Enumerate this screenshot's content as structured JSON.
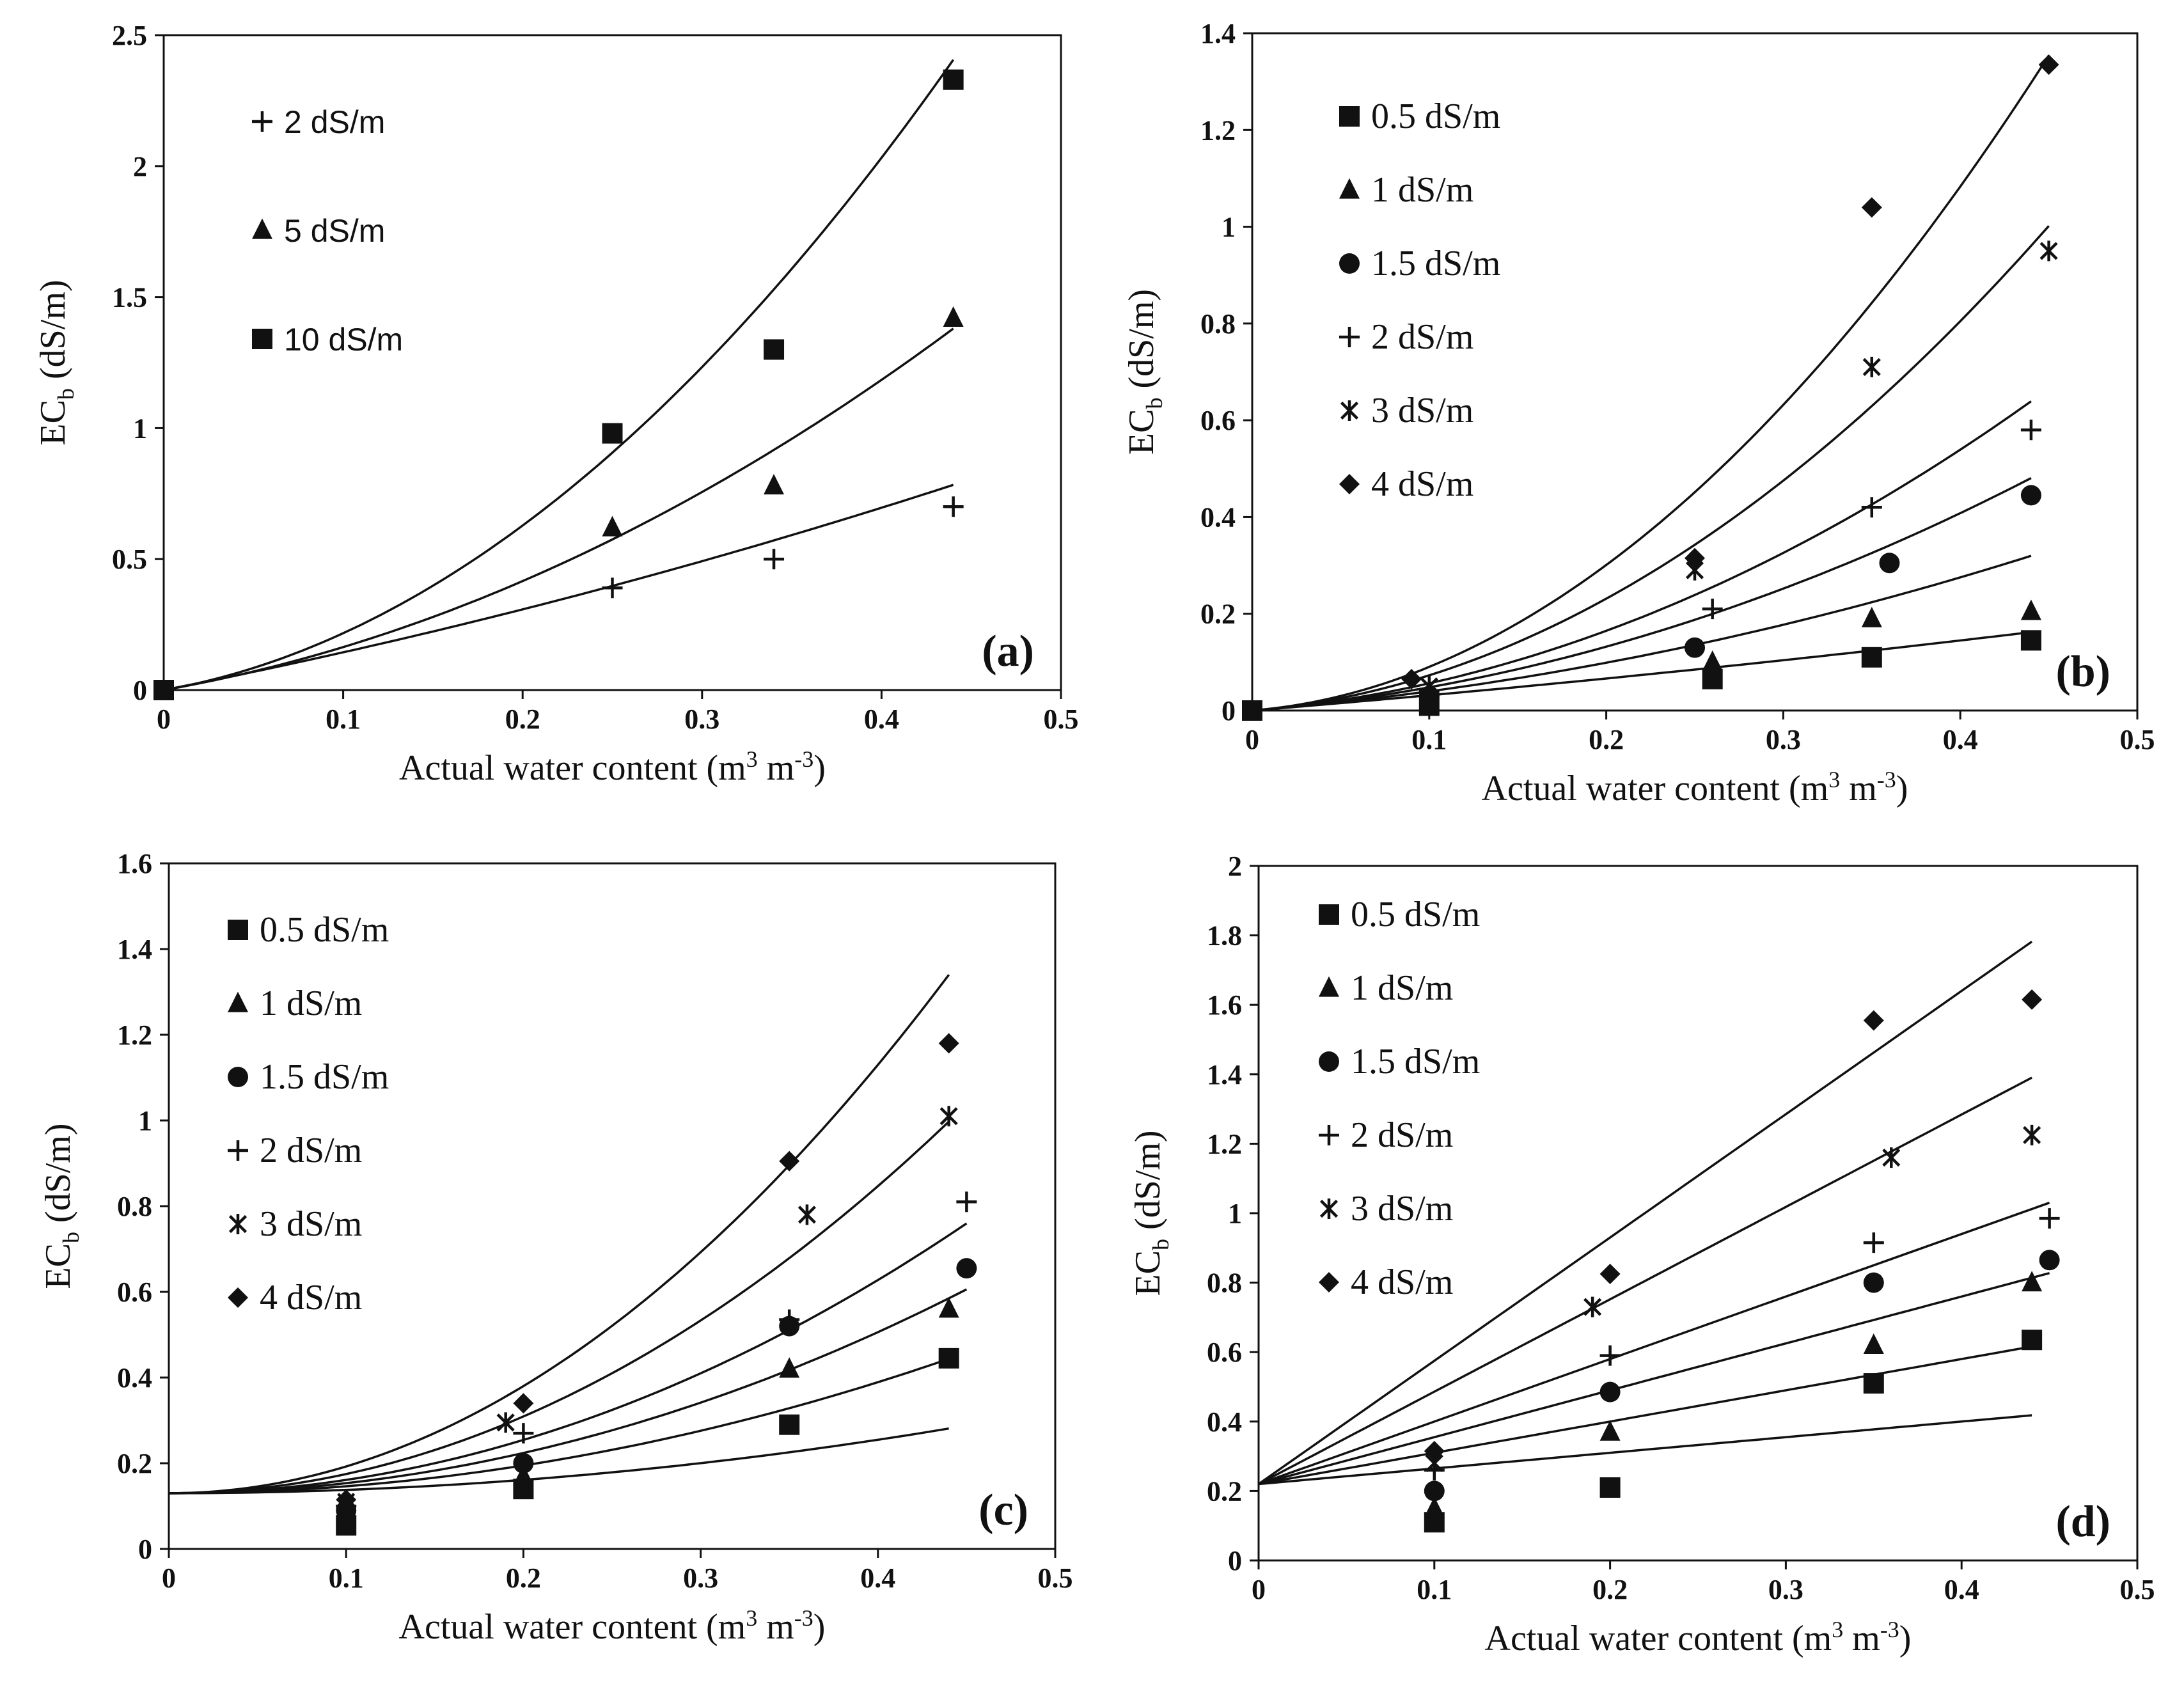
{
  "chart_data": [
    {
      "type": "scatter",
      "panel_label": "(a)",
      "xlabel_text": "Actual water content (m",
      "xlabel_exp1": "3",
      "xlabel_mid": " m",
      "xlabel_exp2": "-3",
      "xlabel_end": ")",
      "ylabel_main": "EC",
      "ylabel_sub": "b",
      "ylabel_unit": " (dS/m)",
      "xlim": [
        0,
        0.5
      ],
      "ylim": [
        0,
        2.5
      ],
      "xticks": [
        "0",
        "0.1",
        "0.2",
        "0.3",
        "0.4",
        "0.5"
      ],
      "yticks": [
        "0",
        "0.5",
        "1",
        "1.5",
        "2",
        "2.5"
      ],
      "legend_style": "sans",
      "series": [
        {
          "name": "2 dS/m",
          "marker": "plus",
          "x": [
            0,
            0.25,
            0.34,
            0.44
          ],
          "y": [
            0,
            0.39,
            0.5,
            0.7
          ],
          "fit": {
            "a": 0,
            "b": 1.34,
            "c": 1.0
          }
        },
        {
          "name": "5 dS/m",
          "marker": "triangle",
          "x": [
            0,
            0.25,
            0.34,
            0.44
          ],
          "y": [
            0,
            0.62,
            0.78,
            1.42
          ],
          "fit": {
            "a": 0,
            "b": 1.2,
            "c": 4.4
          }
        },
        {
          "name": "10 dS/m",
          "marker": "square",
          "x": [
            0,
            0.25,
            0.34,
            0.44
          ],
          "y": [
            0,
            0.98,
            1.3,
            2.33
          ],
          "fit": {
            "a": 0,
            "b": 1.2,
            "c": 9.7
          }
        }
      ]
    },
    {
      "type": "scatter",
      "panel_label": "(b)",
      "xlabel_text": "Actual water content (m",
      "xlabel_exp1": "3",
      "xlabel_mid": " m",
      "xlabel_exp2": "-3",
      "xlabel_end": ")",
      "ylabel_main": "EC",
      "ylabel_sub": "b",
      "ylabel_unit": " (dS/m)",
      "xlim": [
        0,
        0.5
      ],
      "ylim": [
        0,
        1.4
      ],
      "xticks": [
        "0",
        "0.1",
        "0.2",
        "0.3",
        "0.4",
        "0.5"
      ],
      "yticks": [
        "0",
        "0.2",
        "0.4",
        "0.6",
        "0.8",
        "1",
        "1.2",
        "1.4"
      ],
      "legend_style": "serif",
      "series": [
        {
          "name": "0.5 dS/m",
          "marker": "square",
          "x": [
            0,
            0.1,
            0.26,
            0.35,
            0.44
          ],
          "y": [
            0,
            0.01,
            0.065,
            0.11,
            0.145
          ],
          "fit": {
            "a": 0,
            "b": 0.3,
            "c": 0.155
          }
        },
        {
          "name": "1 dS/m",
          "marker": "triangle",
          "x": [
            0,
            0.1,
            0.26,
            0.35,
            0.44
          ],
          "y": [
            0,
            0.02,
            0.1,
            0.19,
            0.205
          ],
          "fit": {
            "a": 0,
            "b": 0.3,
            "c": 0.97
          }
        },
        {
          "name": "1.5 dS/m",
          "marker": "circle",
          "x": [
            0,
            0.1,
            0.25,
            0.36,
            0.44
          ],
          "y": [
            0,
            0.03,
            0.13,
            0.305,
            0.445
          ],
          "fit": {
            "a": 0,
            "b": 0.3,
            "c": 1.8
          }
        },
        {
          "name": "2 dS/m",
          "marker": "plus",
          "x": [
            0,
            0.1,
            0.26,
            0.35,
            0.44
          ],
          "y": [
            0,
            0.04,
            0.21,
            0.42,
            0.58
          ],
          "fit": {
            "a": 0,
            "b": 0.3,
            "c": 2.62
          }
        },
        {
          "name": "3 dS/m",
          "marker": "asterisk",
          "x": [
            0,
            0.1,
            0.25,
            0.35,
            0.45
          ],
          "y": [
            0,
            0.05,
            0.29,
            0.71,
            0.95
          ],
          "fit": {
            "a": 0,
            "b": 0.3,
            "c": 4.28
          }
        },
        {
          "name": "4 dS/m",
          "marker": "diamond",
          "x": [
            0,
            0.09,
            0.25,
            0.35,
            0.45
          ],
          "y": [
            0,
            0.065,
            0.315,
            1.04,
            1.335
          ],
          "fit": {
            "a": 0,
            "b": 0.3,
            "c": 6.02
          }
        }
      ]
    },
    {
      "type": "scatter",
      "panel_label": "(c)",
      "xlabel_text": "Actual water content (m",
      "xlabel_exp1": "3",
      "xlabel_mid": " m",
      "xlabel_exp2": "-3",
      "xlabel_end": ")",
      "ylabel_main": "EC",
      "ylabel_sub": "b",
      "ylabel_unit": " (dS/m)",
      "xlim": [
        0,
        0.5
      ],
      "ylim": [
        0,
        1.6
      ],
      "xticks": [
        "0",
        "0.1",
        "0.2",
        "0.3",
        "0.4",
        "0.5"
      ],
      "yticks": [
        "0",
        "0.2",
        "0.4",
        "0.6",
        "0.8",
        "1",
        "1.2",
        "1.4",
        "1.6"
      ],
      "legend_style": "serif",
      "series": [
        {
          "name": "0.5 dS/m",
          "marker": "square",
          "x": [
            0.1,
            0.2,
            0.35,
            0.44
          ],
          "y": [
            0.055,
            0.14,
            0.29,
            0.445
          ],
          "fit": {
            "a": 0.13,
            "b": 0,
            "c": 0.78
          }
        },
        {
          "name": "1 dS/m",
          "marker": "triangle",
          "x": [
            0.1,
            0.2,
            0.35,
            0.44
          ],
          "y": [
            0.075,
            0.17,
            0.42,
            0.56
          ],
          "fit": {
            "a": 0.13,
            "b": 0,
            "c": 1.62
          }
        },
        {
          "name": "1.5 dS/m",
          "marker": "circle",
          "x": [
            0.1,
            0.2,
            0.35,
            0.45
          ],
          "y": [
            0.09,
            0.2,
            0.52,
            0.655
          ],
          "fit": {
            "a": 0.13,
            "b": 0,
            "c": 2.35
          }
        },
        {
          "name": "2 dS/m",
          "marker": "plus",
          "x": [
            0.1,
            0.2,
            0.35,
            0.45
          ],
          "y": [
            0.1,
            0.27,
            0.535,
            0.81
          ],
          "fit": {
            "a": 0.13,
            "b": 0,
            "c": 3.11
          }
        },
        {
          "name": "3 dS/m",
          "marker": "asterisk",
          "x": [
            0.1,
            0.19,
            0.36,
            0.44
          ],
          "y": [
            0.11,
            0.295,
            0.78,
            1.01
          ],
          "fit": {
            "a": 0.13,
            "b": 0,
            "c": 4.48
          }
        },
        {
          "name": "4 dS/m",
          "marker": "diamond",
          "x": [
            0.1,
            0.2,
            0.35,
            0.44
          ],
          "y": [
            0.115,
            0.34,
            0.905,
            1.18
          ],
          "fit": {
            "a": 0.13,
            "b": 0,
            "c": 6.25
          }
        }
      ]
    },
    {
      "type": "scatter",
      "panel_label": "(d)",
      "xlabel_text": "Actual water content (m",
      "xlabel_exp1": "3",
      "xlabel_mid": " m",
      "xlabel_exp2": "-3",
      "xlabel_end": ")",
      "ylabel_main": "EC",
      "ylabel_sub": "b",
      "ylabel_unit": " (dS/m)",
      "xlim": [
        0,
        0.5
      ],
      "ylim": [
        0,
        2
      ],
      "xticks": [
        "0",
        "0.1",
        "0.2",
        "0.3",
        "0.4",
        "0.5"
      ],
      "yticks": [
        "0",
        "0.2",
        "0.4",
        "0.6",
        "0.8",
        "1",
        "1.2",
        "1.4",
        "1.6",
        "1.8",
        "2"
      ],
      "legend_style": "serif",
      "series": [
        {
          "name": "0.5 dS/m",
          "marker": "square",
          "x": [
            0.1,
            0.2,
            0.35,
            0.44
          ],
          "y": [
            0.11,
            0.21,
            0.51,
            0.635
          ],
          "fit": {
            "a": 0.22,
            "b": 0.45,
            "c": 0
          }
        },
        {
          "name": "1 dS/m",
          "marker": "triangle",
          "x": [
            0.1,
            0.2,
            0.35,
            0.44
          ],
          "y": [
            0.15,
            0.37,
            0.62,
            0.8
          ],
          "fit": {
            "a": 0.22,
            "b": 0.9,
            "c": 0
          }
        },
        {
          "name": "1.5 dS/m",
          "marker": "circle",
          "x": [
            0.1,
            0.2,
            0.35,
            0.45
          ],
          "y": [
            0.2,
            0.485,
            0.8,
            0.865
          ],
          "fit": {
            "a": 0.22,
            "b": 1.35,
            "c": 0
          }
        },
        {
          "name": "2 dS/m",
          "marker": "plus",
          "x": [
            0.1,
            0.2,
            0.35,
            0.45
          ],
          "y": [
            0.26,
            0.59,
            0.915,
            0.985
          ],
          "fit": {
            "a": 0.22,
            "b": 1.8,
            "c": 0
          }
        },
        {
          "name": "3 dS/m",
          "marker": "asterisk",
          "x": [
            0.1,
            0.19,
            0.36,
            0.44
          ],
          "y": [
            0.28,
            0.73,
            1.16,
            1.225
          ],
          "fit": {
            "a": 0.22,
            "b": 2.66,
            "c": 0
          }
        },
        {
          "name": "4 dS/m",
          "marker": "diamond",
          "x": [
            0.1,
            0.2,
            0.35,
            0.44
          ],
          "y": [
            0.315,
            0.825,
            1.555,
            1.615
          ],
          "fit": {
            "a": 0.22,
            "b": 3.55,
            "c": 0
          }
        }
      ]
    }
  ]
}
